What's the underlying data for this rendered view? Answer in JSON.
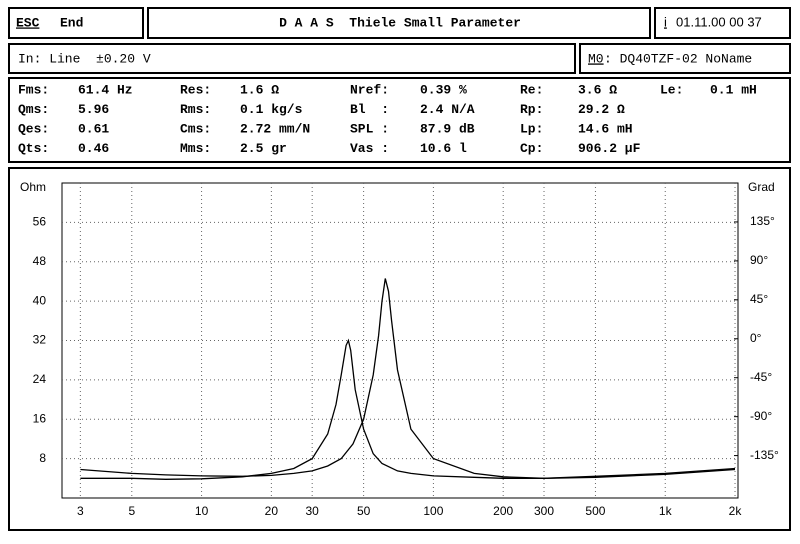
{
  "header": {
    "esc": "ESC",
    "end": "End",
    "title": "D A A S  Thiele Small Parameter",
    "info_key": "i",
    "datetime": "01.11.00 00 37",
    "input": "In: Line  ±0.20 V",
    "mode_key": "M0",
    "model": ": DQ40TZF-02 NoName"
  },
  "params": {
    "rows": [
      [
        [
          "Fms:",
          "61.4 Hz"
        ],
        [
          "Res:",
          "1.6 Ω"
        ],
        [
          "Nref:",
          "0.39 %"
        ],
        [
          "Re:",
          "3.6 Ω"
        ],
        [
          "Le:",
          "0.1 mH"
        ]
      ],
      [
        [
          "Qms:",
          "5.96"
        ],
        [
          "Rms:",
          "0.1 kg/s"
        ],
        [
          "Bl  :",
          "2.4 N/A"
        ],
        [
          "Rp:",
          "29.2 Ω"
        ]
      ],
      [
        [
          "Qes:",
          "0.61"
        ],
        [
          "Cms:",
          "2.72 mm/N"
        ],
        [
          "SPL :",
          "87.9 dB"
        ],
        [
          "Lp:",
          "14.6 mH"
        ]
      ],
      [
        [
          "Qts:",
          "0.46"
        ],
        [
          "Mms:",
          "2.5 gr"
        ],
        [
          "Vas :",
          "10.6 l"
        ],
        [
          "Cp:",
          "906.2 µF"
        ]
      ]
    ]
  },
  "chart_data": {
    "type": "line",
    "y_label": "Ohm",
    "y2_label": "Grad",
    "log_x": true,
    "grid": true,
    "xlim": [
      2.5,
      2060
    ],
    "xticks": [
      3,
      5,
      10,
      20,
      30,
      50,
      100,
      200,
      300,
      500,
      {
        "value": 1000,
        "label": "1k"
      },
      {
        "value": 2000,
        "label": "2k"
      }
    ],
    "ylim": [
      0,
      64
    ],
    "yticks": [
      8,
      16,
      24,
      32,
      40,
      48,
      56
    ],
    "y2lim": [
      -184,
      180
    ],
    "y2ticks": [
      {
        "value": -135,
        "label": "-135°"
      },
      {
        "value": -90,
        "label": "-90°"
      },
      {
        "value": -45,
        "label": "-45°"
      },
      {
        "value": 0,
        "label": "0°"
      },
      {
        "value": 45,
        "label": "45°"
      },
      {
        "value": 90,
        "label": "90°"
      },
      {
        "value": 135,
        "label": "135°"
      }
    ],
    "series": [
      {
        "color": "#000000",
        "x": [
          3,
          5,
          7,
          10,
          15,
          20,
          25,
          30,
          35,
          38,
          40,
          42,
          43,
          44,
          46,
          50,
          55,
          60,
          70,
          80,
          100,
          150,
          200,
          300,
          500,
          1000,
          2000
        ],
        "values": [
          4,
          4,
          3.8,
          3.9,
          4.3,
          5,
          6,
          8,
          13,
          19,
          25,
          31,
          32,
          30,
          22,
          14,
          9,
          7,
          5.5,
          5,
          4.5,
          4.2,
          4,
          4,
          4.4,
          5,
          6
        ]
      },
      {
        "color": "#000000",
        "x": [
          3,
          5,
          7,
          10,
          15,
          20,
          25,
          30,
          35,
          40,
          45,
          50,
          55,
          58,
          60,
          62,
          64,
          66,
          70,
          80,
          100,
          150,
          200,
          300,
          500,
          1000,
          2000
        ],
        "values": [
          5.8,
          5,
          4.7,
          4.5,
          4.4,
          4.6,
          5,
          5.5,
          6.5,
          8,
          11,
          16,
          25,
          33,
          40,
          44.6,
          42,
          36,
          26,
          14,
          8,
          5,
          4.3,
          4,
          4.2,
          4.8,
          5.8
        ]
      }
    ]
  }
}
